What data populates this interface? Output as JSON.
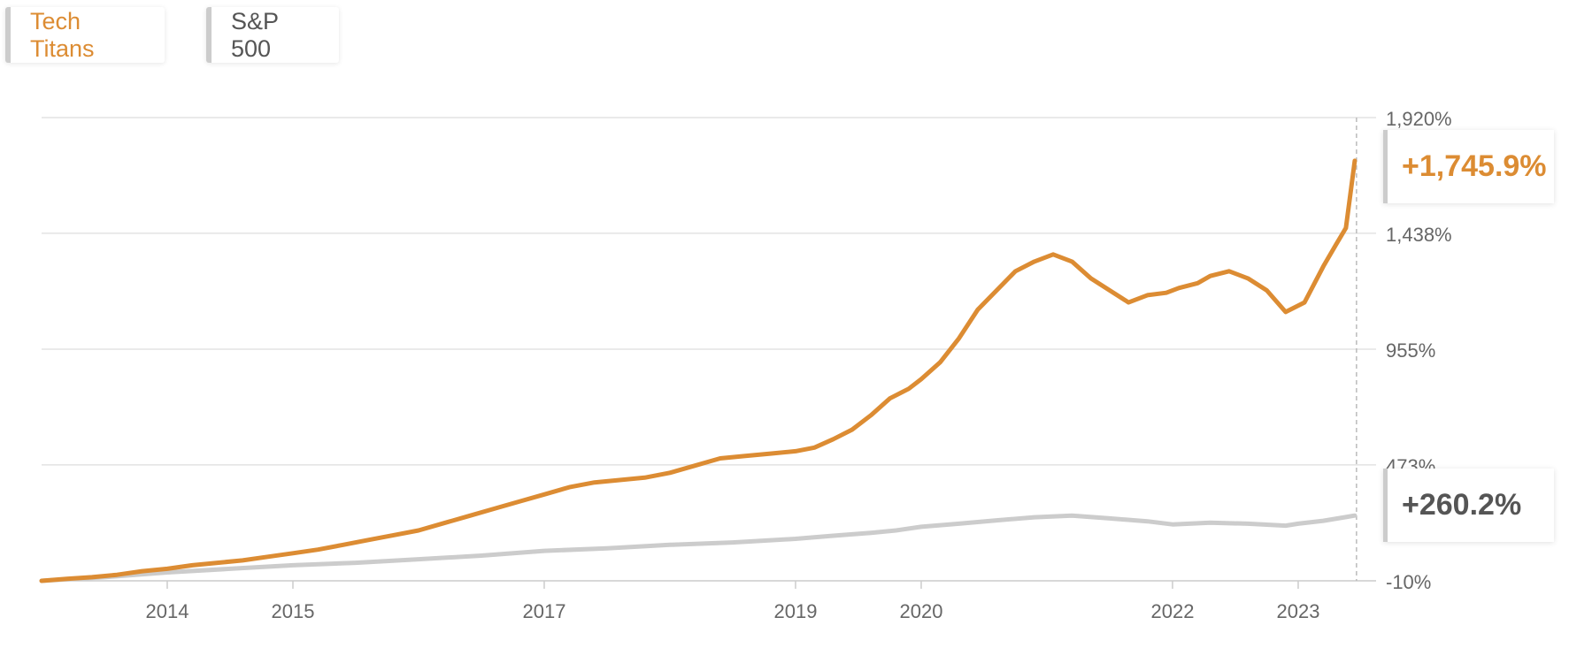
{
  "colors": {
    "tech": "#dc8c33",
    "sp": "#cccccc",
    "grid": "#e3e3e3",
    "axis_text": "#666666"
  },
  "legend": {
    "tech_label": "Tech Titans",
    "sp_label": "S&P 500"
  },
  "badges": {
    "tech_value": "+1,745.9%",
    "sp_value": "+260.2%"
  },
  "chart_data": {
    "type": "line",
    "y_ticks": [
      "1,920%",
      "1,438%",
      "955%",
      "473%",
      "-10%"
    ],
    "y_tick_values": [
      1920,
      1438,
      955,
      473,
      -10
    ],
    "ylim": [
      -10,
      1920
    ],
    "x_ticks": [
      {
        "label": "2014",
        "x": 2014.0
      },
      {
        "label": "2015",
        "x": 2015.0
      },
      {
        "label": "2017",
        "x": 2017.0
      },
      {
        "label": "2019",
        "x": 2019.0
      },
      {
        "label": "2020",
        "x": 2020.0
      },
      {
        "label": "2022",
        "x": 2022.0
      },
      {
        "label": "2023",
        "x": 2023.0
      }
    ],
    "xlim": [
      2013.0,
      2023.62
    ],
    "grid": true,
    "legend_position": "top-left",
    "series": [
      {
        "name": "Tech Titans",
        "x": [
          2013.0,
          2013.2,
          2013.4,
          2013.6,
          2013.8,
          2014.0,
          2014.2,
          2014.4,
          2014.6,
          2014.8,
          2015.0,
          2015.2,
          2015.4,
          2015.6,
          2015.8,
          2016.0,
          2016.2,
          2016.4,
          2016.6,
          2016.8,
          2017.0,
          2017.2,
          2017.4,
          2017.6,
          2017.8,
          2018.0,
          2018.2,
          2018.4,
          2018.6,
          2018.8,
          2019.0,
          2019.15,
          2019.3,
          2019.45,
          2019.6,
          2019.75,
          2019.9,
          2020.0,
          2020.15,
          2020.3,
          2020.45,
          2020.6,
          2020.75,
          2020.9,
          2021.05,
          2021.2,
          2021.35,
          2021.5,
          2021.65,
          2021.8,
          2021.95,
          2022.05,
          2022.2,
          2022.3,
          2022.45,
          2022.6,
          2022.75,
          2022.9,
          2023.05,
          2023.2,
          2023.3,
          2023.38,
          2023.45
        ],
        "values": [
          -10,
          -2,
          5,
          15,
          30,
          40,
          55,
          65,
          75,
          90,
          105,
          120,
          140,
          160,
          180,
          200,
          230,
          260,
          290,
          320,
          350,
          380,
          400,
          410,
          420,
          440,
          470,
          500,
          510,
          520,
          530,
          545,
          580,
          620,
          680,
          750,
          790,
          830,
          900,
          1000,
          1120,
          1200,
          1280,
          1320,
          1350,
          1320,
          1250,
          1200,
          1150,
          1180,
          1190,
          1210,
          1230,
          1260,
          1280,
          1250,
          1200,
          1110,
          1150,
          1300,
          1390,
          1460,
          1740
        ]
      },
      {
        "name": "S&P 500",
        "x": [
          2013.0,
          2013.5,
          2014.0,
          2014.5,
          2015.0,
          2015.5,
          2016.0,
          2016.5,
          2017.0,
          2017.5,
          2018.0,
          2018.5,
          2019.0,
          2019.3,
          2019.6,
          2019.8,
          2020.0,
          2020.3,
          2020.6,
          2020.9,
          2021.2,
          2021.5,
          2021.8,
          2022.0,
          2022.3,
          2022.6,
          2022.9,
          2023.0,
          2023.2,
          2023.45
        ],
        "values": [
          -10,
          5,
          25,
          40,
          55,
          65,
          80,
          95,
          115,
          125,
          140,
          150,
          165,
          178,
          190,
          200,
          215,
          228,
          242,
          255,
          262,
          250,
          238,
          225,
          232,
          228,
          220,
          228,
          240,
          262
        ]
      }
    ]
  }
}
